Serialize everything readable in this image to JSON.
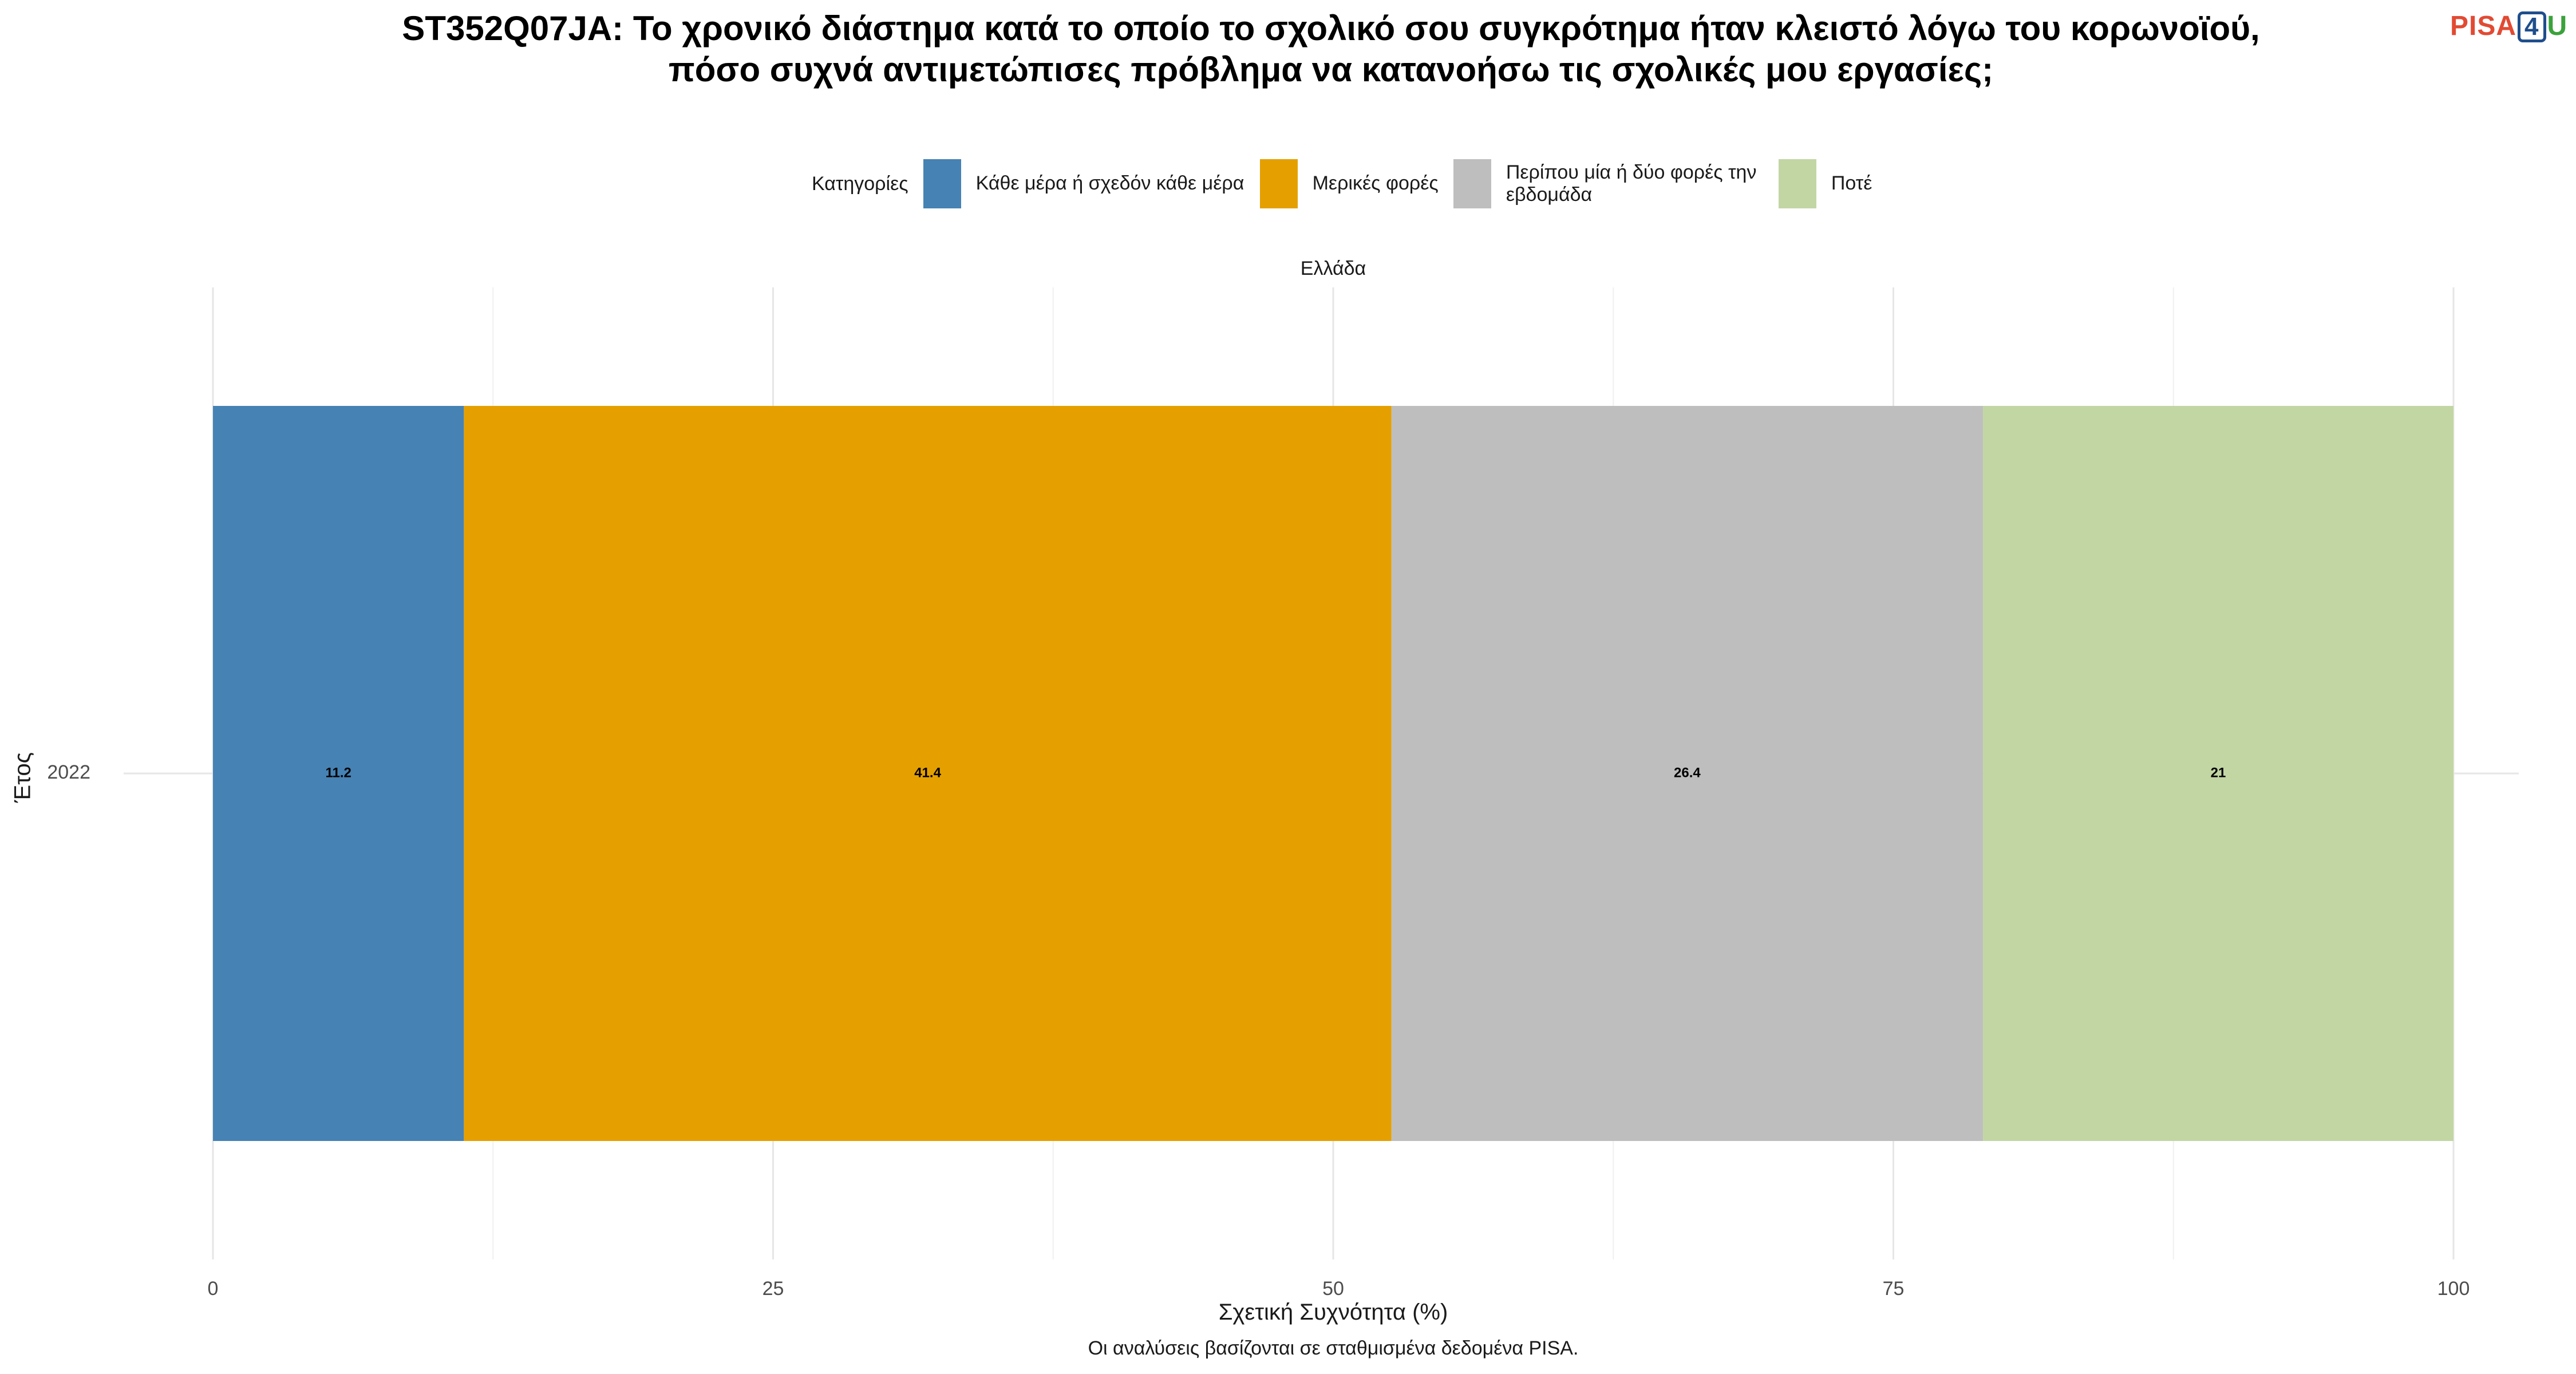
{
  "chart_data": {
    "type": "bar",
    "orientation": "horizontal",
    "stacked": true,
    "title": "ST352Q07JA: Το χρονικό διάστημα κατά το οποίο το σχολικό σου συγκρότημα ήταν κλειστό λόγω του κορωνοϊού, πόσο συχνά αντιμετώπισες πρόβλημα να κατανοήσω τις σχολικές μου εργασίες;",
    "facet": "Ελλάδα",
    "categories": [
      "2022"
    ],
    "series": [
      {
        "name": "Κάθε μέρα ή σχεδόν κάθε μέρα",
        "values": [
          11.2
        ],
        "labels": [
          "11.2"
        ],
        "color": "#4682b4"
      },
      {
        "name": "Μερικές φορές",
        "values": [
          41.4
        ],
        "labels": [
          "41.4"
        ],
        "color": "#e5a000"
      },
      {
        "name": "Περίπου μία ή δύο φορές την εβδομάδα",
        "values": [
          26.4
        ],
        "labels": [
          "26.4"
        ],
        "color": "#bebebe"
      },
      {
        "name": "Ποτέ",
        "values": [
          21
        ],
        "labels": [
          "21"
        ],
        "color": "#c2d6a4"
      }
    ],
    "legend_title": "Κατηγορίες",
    "legend_position": "top",
    "xlabel": "Σχετική Συχνότητα (%)",
    "ylabel": "Έτος",
    "xlim": [
      0,
      100
    ],
    "xticks": [
      "0",
      "25",
      "50",
      "75",
      "100"
    ],
    "grid": true,
    "caption": "Οι αναλύσεις βασίζονται σε σταθμισμένα δεδομένα PISA."
  },
  "logo": {
    "part1": "PISA",
    "part2": "4",
    "part3": "U"
  }
}
